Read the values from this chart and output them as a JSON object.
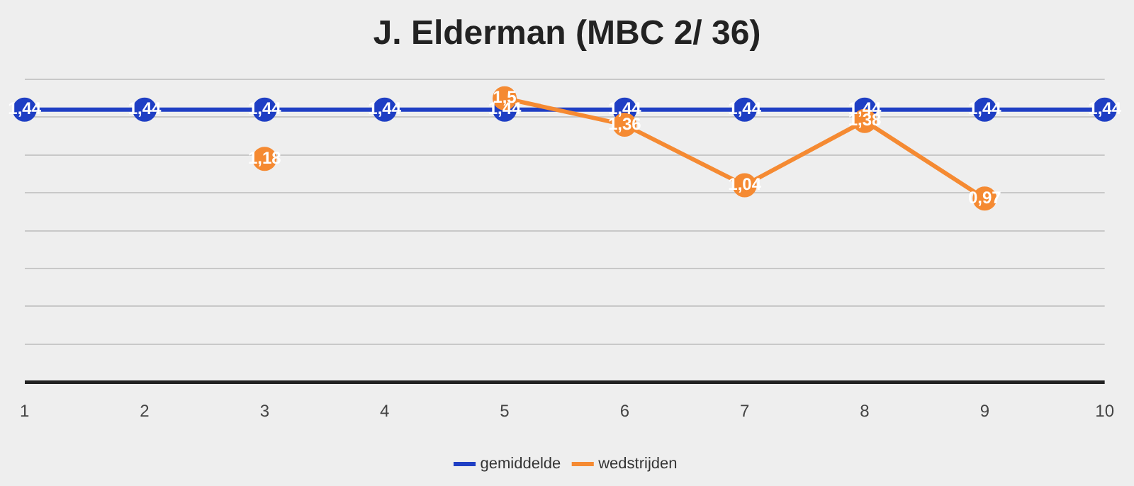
{
  "chart_data": {
    "type": "line",
    "title": "J. Elderman (MBC 2/ 36)",
    "categories": [
      "1",
      "2",
      "3",
      "4",
      "5",
      "6",
      "7",
      "8",
      "9",
      "10"
    ],
    "series": [
      {
        "name": "gemiddelde",
        "color": "#1f3fc4",
        "values": [
          1.44,
          1.44,
          1.44,
          1.44,
          1.44,
          1.44,
          1.44,
          1.44,
          1.44,
          1.44
        ],
        "value_labels": [
          "1,44",
          "1,44",
          "1,44",
          "1,44",
          "1,44",
          "1,44",
          "1,44",
          "1,44",
          "1,44",
          "1,44"
        ]
      },
      {
        "name": "wedstrijden",
        "color": "#f58a32",
        "values": [
          null,
          null,
          1.18,
          null,
          1.5,
          1.36,
          1.04,
          1.38,
          0.97,
          null
        ],
        "value_labels": [
          null,
          null,
          "1,18",
          null,
          "1,5",
          "1,36",
          "1,04",
          "1,38",
          "0,97",
          null
        ]
      }
    ],
    "ylim": [
      0,
      1.6
    ],
    "yticks": [
      {
        "value": 0,
        "label": null
      },
      {
        "value": 0.2,
        "label": null
      },
      {
        "value": 0.4,
        "label": null
      },
      {
        "value": 0.6,
        "label": null
      },
      {
        "value": 0.8,
        "label": null
      },
      {
        "value": 1,
        "label": null
      },
      {
        "value": 1.2,
        "label": null
      },
      {
        "value": 1.4,
        "label": null
      },
      {
        "value": 1.6,
        "label": null
      }
    ],
    "tick_labels": "x",
    "grid": "y",
    "legend": "bottom",
    "marker": "circle",
    "line_style": "solid"
  }
}
